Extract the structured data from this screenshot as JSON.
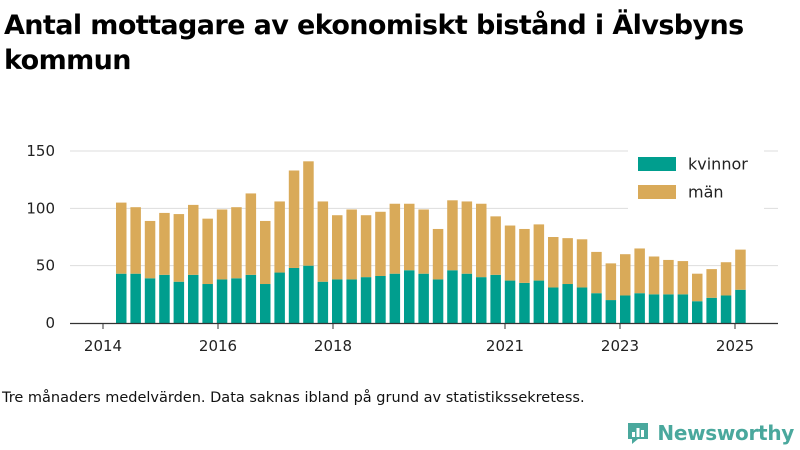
{
  "title": "Antal mottagare av ekonomiskt bistånd i Älvsbyns kommun",
  "footnote": "Tre månaders medelvärden. Data saknas ibland på grund av statistikssekretess.",
  "brand": {
    "name": "Newsworthy",
    "icon": "newsworthy-logo-icon"
  },
  "colors": {
    "kvinnor": "#009e8e",
    "man": "#d9aa59",
    "grid": "#dddddd",
    "axis": "#333333"
  },
  "chart_data": {
    "type": "bar",
    "stacked": true,
    "x_ticks": [
      "2014",
      "2016",
      "2018",
      "2021",
      "2023",
      "2025"
    ],
    "y_ticks": [
      0,
      50,
      100,
      150
    ],
    "ylim": [
      0,
      150
    ],
    "grid": true,
    "legend_position": "top-right",
    "series": [
      {
        "name": "kvinnor",
        "color": "#009e8e",
        "values": [
          43,
          43,
          39,
          42,
          36,
          42,
          34,
          38,
          39,
          42,
          34,
          44,
          48,
          50,
          36,
          38,
          38,
          40,
          41,
          43,
          46,
          43,
          38,
          46,
          43,
          40,
          42,
          37,
          35,
          37,
          31,
          34,
          31,
          26,
          20,
          24,
          26,
          25,
          25,
          25,
          19,
          22,
          24,
          29
        ]
      },
      {
        "name": "män",
        "color": "#d9aa59",
        "values": [
          62,
          58,
          50,
          54,
          59,
          61,
          57,
          61,
          62,
          71,
          55,
          62,
          85,
          91,
          70,
          56,
          61,
          54,
          56,
          61,
          58,
          56,
          44,
          61,
          63,
          64,
          51,
          48,
          47,
          49,
          44,
          40,
          42,
          36,
          32,
          36,
          39,
          33,
          30,
          29,
          24,
          25,
          29,
          35
        ]
      }
    ]
  }
}
